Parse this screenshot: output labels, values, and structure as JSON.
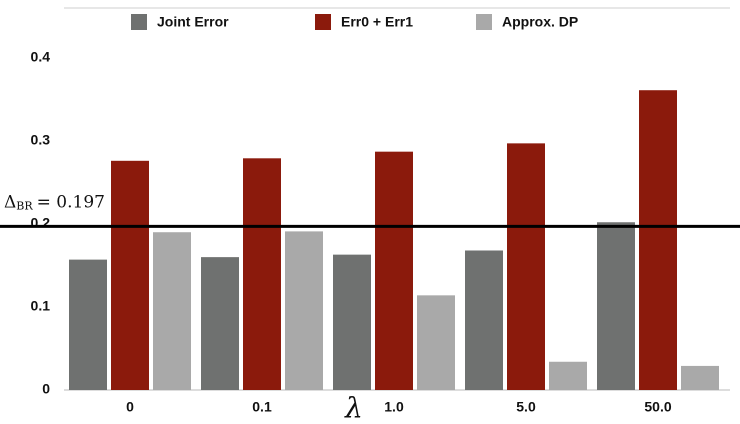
{
  "chart_data": {
    "type": "bar",
    "categories": [
      "0",
      "0.1",
      "1.0",
      "5.0",
      "50.0"
    ],
    "series": [
      {
        "name": "Joint Error",
        "color": "#6f7170",
        "values": [
          0.157,
          0.16,
          0.163,
          0.168,
          0.202
        ]
      },
      {
        "name": "Err0 + Err1",
        "color": "#8b1a0c",
        "values": [
          0.276,
          0.279,
          0.287,
          0.297,
          0.361
        ]
      },
      {
        "name": "Approx. DP",
        "color": "#a9a9a9",
        "values": [
          0.19,
          0.191,
          0.114,
          0.034,
          0.029
        ]
      }
    ],
    "x_label": "λ",
    "ylim": [
      0,
      0.46
    ],
    "yticks": [
      0,
      0.1,
      0.2,
      0.3,
      0.4
    ],
    "grid": false,
    "legend": "top",
    "reference_line": {
      "value": 0.197,
      "symbol": "Δ",
      "subscript": "BR",
      "text": "= 0.197",
      "color": "#000000"
    }
  }
}
